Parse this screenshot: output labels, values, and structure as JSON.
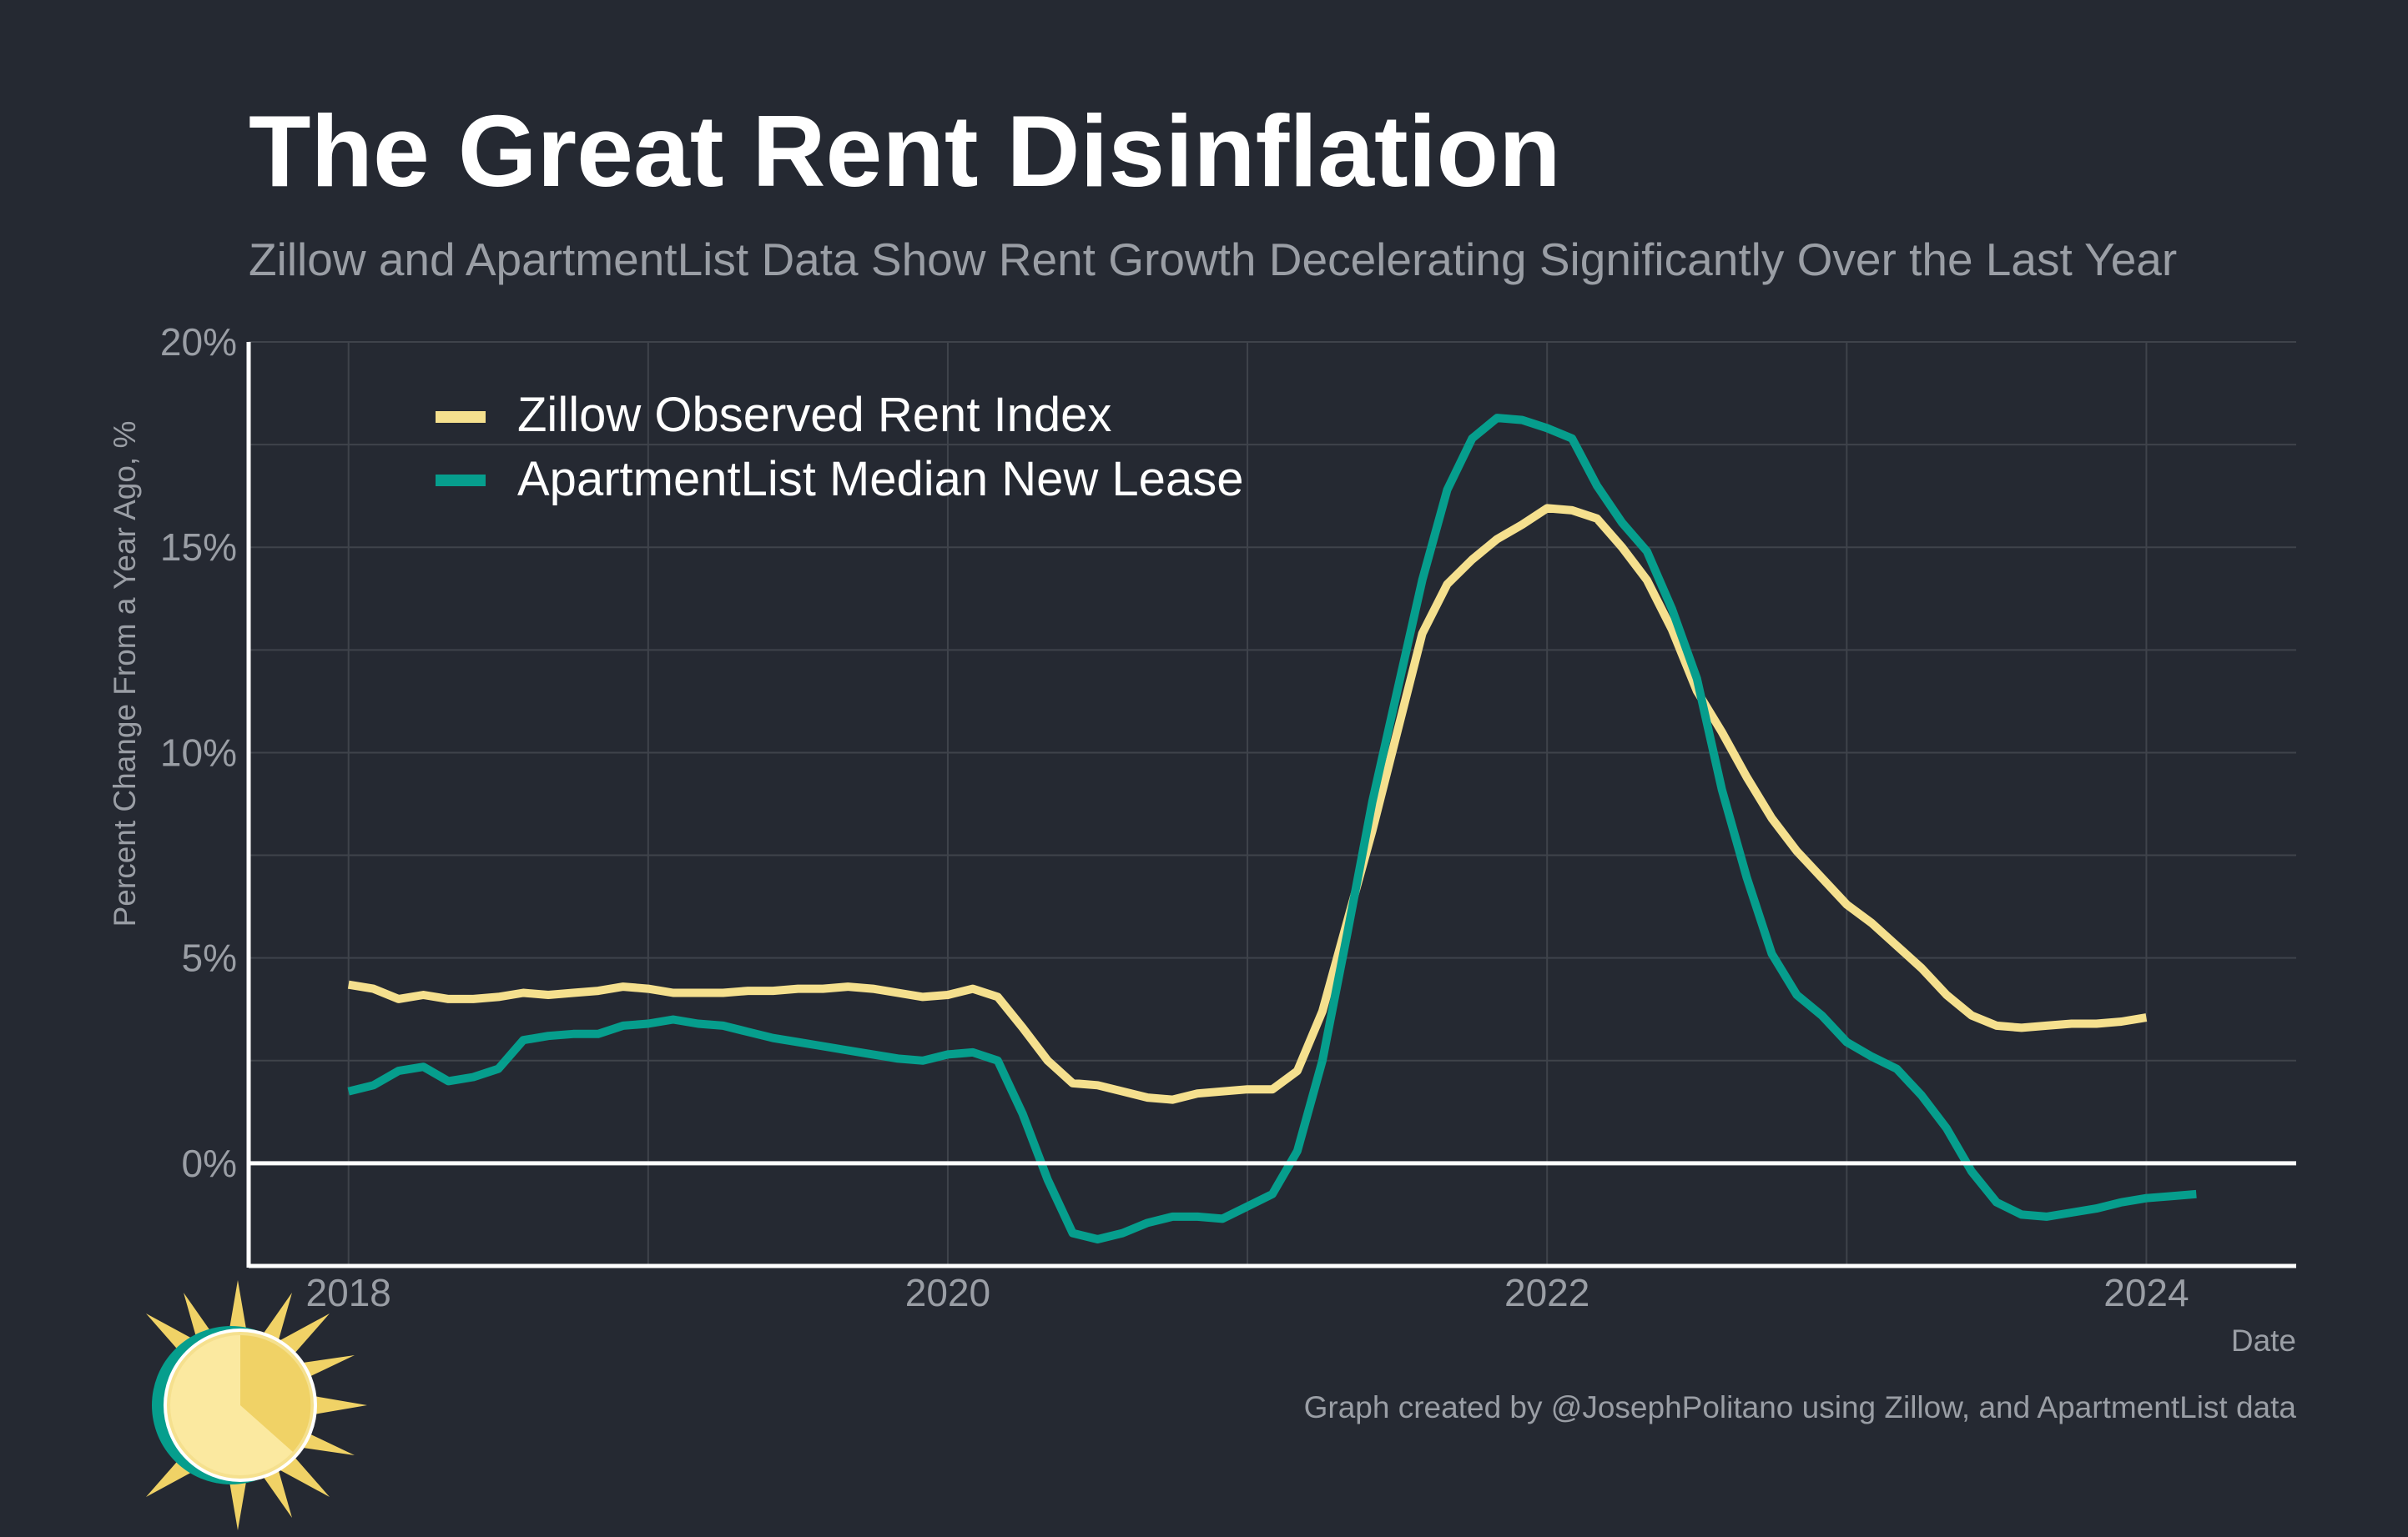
{
  "chart_data": {
    "type": "line",
    "title": "The Great Rent Disinflation",
    "subtitle": "Zillow and ApartmentList Data Show Rent Growth Decelerating Significantly Over the Last Year",
    "xlabel": "Date",
    "ylabel": "Percent Change From a Year Ago, %",
    "caption": "Graph created by @JosephPolitano using Zillow, and ApartmentList data",
    "x_ticks": [
      "2018",
      "2020",
      "2022",
      "2024"
    ],
    "y_ticks": [
      "0%",
      "5%",
      "10%",
      "15%",
      "20%"
    ],
    "ylim": [
      -2.5,
      20
    ],
    "xlim": [
      "2017-09",
      "2024-07"
    ],
    "grid": true,
    "legend_position": "top-left",
    "colors": {
      "background": "#252932",
      "zillow": "#F5E08E",
      "apartmentlist": "#069E8D",
      "text": "#9A9EA5",
      "title": "#FFFFFF",
      "grid": "#3F434B",
      "axis": "#FFFFFF"
    },
    "series": [
      {
        "name": "Zillow Observed Rent Index",
        "color": "#F5E08E",
        "start": "2018-01",
        "values": [
          4.35,
          4.25,
          4.0,
          4.1,
          4.0,
          4.0,
          4.05,
          4.15,
          4.1,
          4.15,
          4.2,
          4.3,
          4.25,
          4.15,
          4.15,
          4.15,
          4.2,
          4.2,
          4.25,
          4.25,
          4.3,
          4.25,
          4.15,
          4.05,
          4.1,
          4.25,
          4.05,
          3.3,
          2.5,
          1.95,
          1.9,
          1.75,
          1.6,
          1.55,
          1.7,
          1.75,
          1.8,
          1.8,
          2.25,
          3.7,
          5.9,
          8.1,
          10.5,
          12.9,
          14.1,
          14.7,
          15.2,
          15.55,
          15.95,
          15.9,
          15.7,
          15.0,
          14.2,
          13.0,
          11.5,
          10.5,
          9.4,
          8.4,
          7.6,
          6.95,
          6.3,
          5.85,
          5.3,
          4.75,
          4.1,
          3.6,
          3.35,
          3.3,
          3.35,
          3.4,
          3.4,
          3.45,
          3.55
        ]
      },
      {
        "name": "ApartmentList Median New Lease",
        "color": "#069E8D",
        "start": "2018-01",
        "values": [
          1.75,
          1.9,
          2.25,
          2.35,
          2.0,
          2.1,
          2.3,
          3.0,
          3.1,
          3.15,
          3.15,
          3.35,
          3.4,
          3.5,
          3.4,
          3.35,
          3.2,
          3.05,
          2.95,
          2.85,
          2.75,
          2.65,
          2.55,
          2.5,
          2.65,
          2.7,
          2.5,
          1.2,
          -0.4,
          -1.7,
          -1.85,
          -1.7,
          -1.45,
          -1.3,
          -1.3,
          -1.35,
          -1.05,
          -0.75,
          0.3,
          2.5,
          5.6,
          8.8,
          11.5,
          14.2,
          16.4,
          17.65,
          18.15,
          18.1,
          17.9,
          17.65,
          16.5,
          15.6,
          14.9,
          13.5,
          11.8,
          9.1,
          6.95,
          5.1,
          4.1,
          3.6,
          2.95,
          2.6,
          2.3,
          1.65,
          0.85,
          -0.2,
          -0.95,
          -1.25,
          -1.3,
          -1.2,
          -1.1,
          -0.95,
          -0.85,
          -0.8,
          -0.75
        ]
      }
    ]
  }
}
